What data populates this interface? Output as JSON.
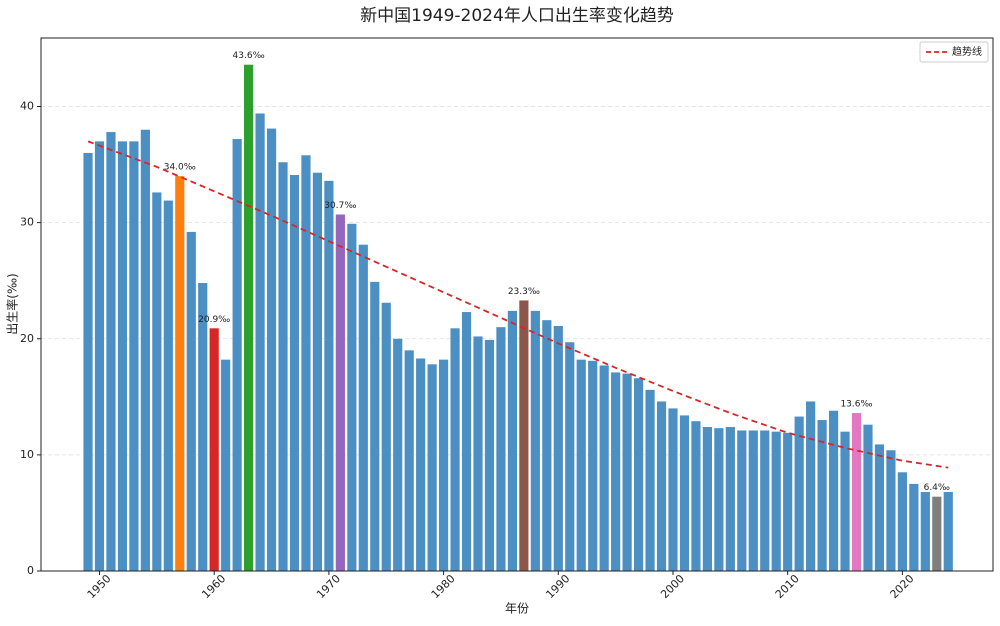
{
  "chart_data": {
    "type": "bar",
    "title": "新中国1949-2024年人口出生率变化趋势",
    "xlabel": "年份",
    "ylabel": "出生率(‰)",
    "x": [
      1949,
      1950,
      1951,
      1952,
      1953,
      1954,
      1955,
      1956,
      1957,
      1958,
      1959,
      1960,
      1961,
      1962,
      1963,
      1964,
      1965,
      1966,
      1967,
      1968,
      1969,
      1970,
      1971,
      1972,
      1973,
      1974,
      1975,
      1976,
      1977,
      1978,
      1979,
      1980,
      1981,
      1982,
      1983,
      1984,
      1985,
      1986,
      1987,
      1988,
      1989,
      1990,
      1991,
      1992,
      1993,
      1994,
      1995,
      1996,
      1997,
      1998,
      1999,
      2000,
      2001,
      2002,
      2003,
      2004,
      2005,
      2006,
      2007,
      2008,
      2009,
      2010,
      2011,
      2012,
      2013,
      2014,
      2015,
      2016,
      2017,
      2018,
      2019,
      2020,
      2021,
      2022,
      2023,
      2024
    ],
    "values": [
      36.0,
      37.0,
      37.8,
      37.0,
      37.0,
      38.0,
      32.6,
      31.9,
      34.0,
      29.2,
      24.8,
      20.9,
      18.2,
      37.2,
      43.6,
      39.4,
      38.1,
      35.2,
      34.1,
      35.8,
      34.3,
      33.6,
      30.7,
      29.9,
      28.1,
      24.9,
      23.1,
      20.0,
      19.0,
      18.3,
      17.8,
      18.2,
      20.9,
      22.3,
      20.2,
      19.9,
      21.0,
      22.4,
      23.3,
      22.4,
      21.6,
      21.1,
      19.7,
      18.2,
      18.1,
      17.7,
      17.1,
      17.0,
      16.6,
      15.6,
      14.6,
      14.0,
      13.4,
      12.9,
      12.4,
      12.3,
      12.4,
      12.1,
      12.1,
      12.1,
      12.0,
      11.9,
      13.3,
      14.6,
      13.0,
      13.8,
      12.0,
      13.6,
      12.6,
      10.9,
      10.4,
      8.5,
      7.5,
      6.8,
      6.4,
      6.8
    ],
    "colors": [
      "#4c8fc2",
      "#4c8fc2",
      "#4c8fc2",
      "#4c8fc2",
      "#4c8fc2",
      "#4c8fc2",
      "#4c8fc2",
      "#4c8fc2",
      "#ff7f0e",
      "#4c8fc2",
      "#4c8fc2",
      "#d62728",
      "#4c8fc2",
      "#4c8fc2",
      "#2ca02c",
      "#4c8fc2",
      "#4c8fc2",
      "#4c8fc2",
      "#4c8fc2",
      "#4c8fc2",
      "#4c8fc2",
      "#4c8fc2",
      "#9467bd",
      "#4c8fc2",
      "#4c8fc2",
      "#4c8fc2",
      "#4c8fc2",
      "#4c8fc2",
      "#4c8fc2",
      "#4c8fc2",
      "#4c8fc2",
      "#4c8fc2",
      "#4c8fc2",
      "#4c8fc2",
      "#4c8fc2",
      "#4c8fc2",
      "#4c8fc2",
      "#4c8fc2",
      "#8c564b",
      "#4c8fc2",
      "#4c8fc2",
      "#4c8fc2",
      "#4c8fc2",
      "#4c8fc2",
      "#4c8fc2",
      "#4c8fc2",
      "#4c8fc2",
      "#4c8fc2",
      "#4c8fc2",
      "#4c8fc2",
      "#4c8fc2",
      "#4c8fc2",
      "#4c8fc2",
      "#4c8fc2",
      "#4c8fc2",
      "#4c8fc2",
      "#4c8fc2",
      "#4c8fc2",
      "#4c8fc2",
      "#4c8fc2",
      "#4c8fc2",
      "#4c8fc2",
      "#4c8fc2",
      "#4c8fc2",
      "#4c8fc2",
      "#4c8fc2",
      "#4c8fc2",
      "#e377c2",
      "#4c8fc2",
      "#4c8fc2",
      "#4c8fc2",
      "#4c8fc2",
      "#4c8fc2",
      "#4c8fc2",
      "#7f7f7f",
      "#4c8fc2"
    ],
    "value_labels": [
      null,
      null,
      null,
      null,
      null,
      null,
      null,
      null,
      "34.0‰",
      null,
      null,
      "20.9‰",
      null,
      null,
      "43.6‰",
      null,
      null,
      null,
      null,
      null,
      null,
      null,
      "30.7‰",
      null,
      null,
      null,
      null,
      null,
      null,
      null,
      null,
      null,
      null,
      null,
      null,
      null,
      null,
      null,
      "23.3‰",
      null,
      null,
      null,
      null,
      null,
      null,
      null,
      null,
      null,
      null,
      null,
      null,
      null,
      null,
      null,
      null,
      null,
      null,
      null,
      null,
      null,
      null,
      null,
      null,
      null,
      null,
      null,
      null,
      "13.6‰",
      null,
      null,
      null,
      null,
      null,
      null,
      "6.4‰",
      null
    ],
    "trend": {
      "name": "趋势线",
      "color": "#d62728",
      "x": [
        1949,
        1955,
        1960,
        1965,
        1970,
        1975,
        1980,
        1985,
        1990,
        1995,
        2000,
        2005,
        2010,
        2015,
        2020,
        2024
      ],
      "values": [
        37.0,
        34.8,
        32.7,
        30.6,
        28.4,
        26.2,
        24.0,
        21.8,
        19.6,
        17.5,
        15.5,
        13.6,
        11.9,
        10.6,
        9.5,
        8.9
      ]
    },
    "xlim": [
      1944.9,
      2027.9
    ],
    "xticks": [
      1950,
      1960,
      1970,
      1980,
      1990,
      2000,
      2010,
      2020
    ],
    "ylim": [
      0,
      45.9
    ],
    "yticks": [
      0,
      10,
      20,
      30,
      40
    ],
    "grid": true,
    "legend": "upper right"
  }
}
